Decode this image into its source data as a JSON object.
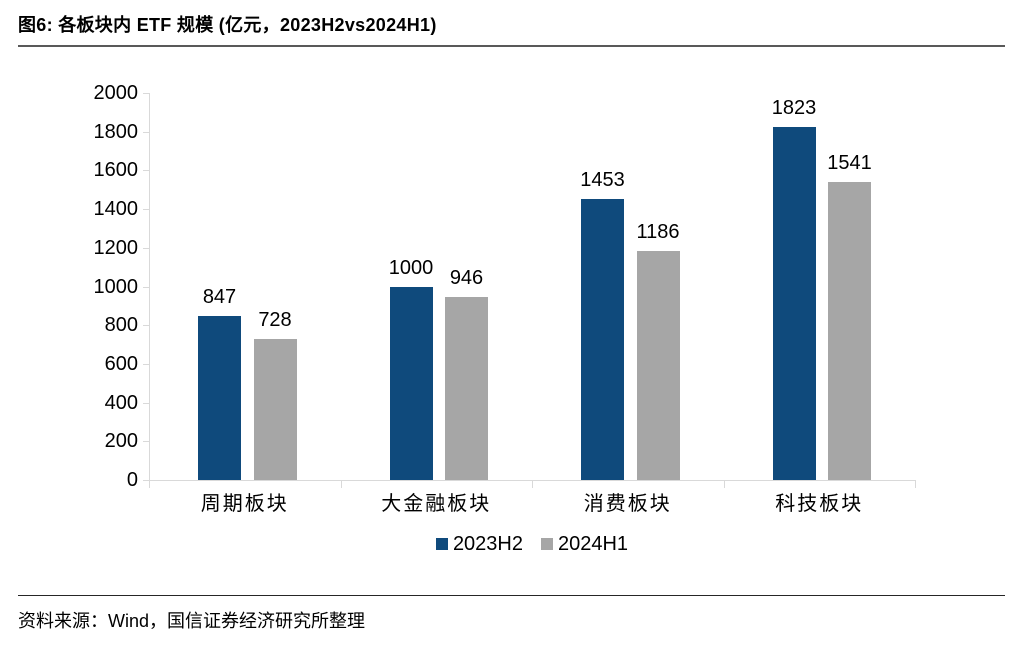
{
  "title": "图6: 各板块内 ETF 规模 (亿元，2023H2vs2024H1)",
  "source": "资料来源：Wind，国信证券经济研究所整理",
  "colors": {
    "series_2023H2": "#0F4A7C",
    "series_2024H1": "#A6A6A6",
    "axis": "#D9D9D9",
    "title_rule": "#595959",
    "source_rule": "#262626",
    "text": "#000000"
  },
  "chart_data": {
    "type": "bar",
    "title": "图6: 各板块内 ETF 规模 (亿元，2023H2vs2024H1)",
    "unit": "亿元",
    "categories": [
      "周期板块",
      "大金融板块",
      "消费板块",
      "科技板块"
    ],
    "series": [
      {
        "name": "2023H2",
        "color": "#0F4A7C",
        "values": [
          847,
          1000,
          1453,
          1823
        ]
      },
      {
        "name": "2024H1",
        "color": "#A6A6A6",
        "values": [
          728,
          946,
          1186,
          1541
        ]
      }
    ],
    "ylim": [
      0,
      2000
    ],
    "ytick_step": 200,
    "yticks": [
      0,
      200,
      400,
      600,
      800,
      1000,
      1200,
      1400,
      1600,
      1800,
      2000
    ],
    "grid": false,
    "legend_position": "bottom",
    "data_labels": true
  }
}
